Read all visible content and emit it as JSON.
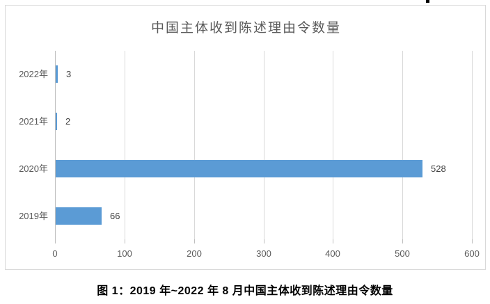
{
  "window": {
    "cursor_mark": "text-cursor-artifact"
  },
  "chart_data": {
    "type": "bar",
    "orientation": "horizontal",
    "title": "中国主体收到陈述理由令数量",
    "categories": [
      "2022年",
      "2021年",
      "2020年",
      "2019年"
    ],
    "values": [
      3,
      2,
      528,
      66
    ],
    "data_labels": [
      "3",
      "2",
      "528",
      "66"
    ],
    "x_ticks": [
      0,
      100,
      200,
      300,
      400,
      500,
      600
    ],
    "xlim": [
      0,
      600
    ],
    "xlabel": "",
    "ylabel": "",
    "grid": "vertical-only",
    "legend": "none",
    "bar_color": "#5b9bd5",
    "gridline_color": "#d9d9d9",
    "axis_color": "#bfbfbf",
    "text_color": "#595959",
    "label_color": "#404040",
    "frame_border_color": "#d9d9d9"
  },
  "caption": "图 1：2019 年~2022 年 8 月中国主体收到陈述理由令数量"
}
